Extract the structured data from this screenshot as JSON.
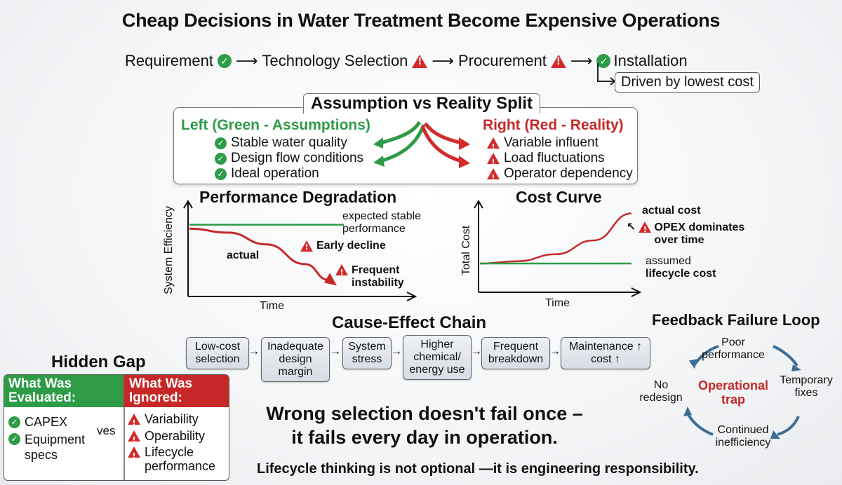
{
  "title": "Cheap Decisions in Water Treatment Become Expensive Operations",
  "flow": {
    "steps": [
      "Requirement",
      "Technology Selection",
      "Procurement",
      "Installation"
    ],
    "side_note": "Driven by lowest cost"
  },
  "split": {
    "title": "Assumption vs Reality Split",
    "left_heading": "Left (Green - Assumptions)",
    "left_items": [
      "Stable water quality",
      "Design flow conditions",
      "Ideal operation"
    ],
    "right_heading": "Right (Red - Reality)",
    "right_items": [
      "Variable influent",
      "Load fluctuations",
      "Operator dependency"
    ],
    "colors": {
      "assumption": "#2e9b47",
      "reality": "#c62828"
    }
  },
  "performance_chart": {
    "title": "Performance Degradation",
    "ylabel": "System Efficiency",
    "xlabel": "Time",
    "expected_label": "expected stable performance",
    "actual_label": "actual",
    "early_decline": "Early decline",
    "instability": "Frequent instability"
  },
  "cost_chart": {
    "title": "Cost Curve",
    "ylabel": "Total Cost",
    "xlabel": "Time",
    "actual_label": "actual cost",
    "opex_note": "OPEX dominates over time",
    "assumed_label": "assumed",
    "assumed_label2": "lifecycle cost"
  },
  "cause_effect": {
    "title": "Cause-Effect Chain",
    "boxes": [
      "Low-cost selection",
      "Inadequate design margin",
      "System stress",
      "Higher chemical/ energy use",
      "Frequent breakdown",
      "Maintenance ↑ cost ↑"
    ]
  },
  "hidden_gap": {
    "title": "Hidden Gap",
    "evaluated_heading": "What Was Evaluated:",
    "ignored_heading": "What Was Ignored:",
    "evaluated_items": [
      "CAPEX",
      "Equipment specs"
    ],
    "versus": "ves",
    "ignored_items": [
      "Variability",
      "Operability",
      "Lifecycle performance"
    ]
  },
  "wrong_line1": "Wrong selection doesn't fail once –",
  "wrong_line2": "it fails every day in operation.",
  "footer": "Lifecycle thinking is not optional —it is engineering responsibility.",
  "feedback_loop": {
    "title": "Feedback Failure Loop",
    "nodes": [
      "Poor performance",
      "Temporary fixes",
      "Continued inefficiency",
      "No redesign"
    ],
    "center": "Operational trap",
    "arrow_color": "#3f6c93"
  },
  "chart_data": [
    {
      "type": "line",
      "title": "Performance Degradation",
      "xlabel": "Time",
      "ylabel": "System Efficiency",
      "series": [
        {
          "name": "expected stable performance",
          "x": [
            0,
            1
          ],
          "y": [
            0.95,
            0.95
          ]
        },
        {
          "name": "actual",
          "x": [
            0,
            0.25,
            0.5,
            0.75,
            0.9
          ],
          "y": [
            0.9,
            0.85,
            0.7,
            0.45,
            0.25
          ]
        }
      ]
    },
    {
      "type": "line",
      "title": "Cost Curve",
      "xlabel": "Time",
      "ylabel": "Total Cost",
      "series": [
        {
          "name": "actual cost",
          "x": [
            0,
            0.25,
            0.5,
            0.75,
            1
          ],
          "y": [
            0.3,
            0.33,
            0.42,
            0.6,
            0.95
          ]
        },
        {
          "name": "assumed lifecycle cost",
          "x": [
            0,
            1
          ],
          "y": [
            0.3,
            0.3
          ]
        }
      ]
    }
  ]
}
